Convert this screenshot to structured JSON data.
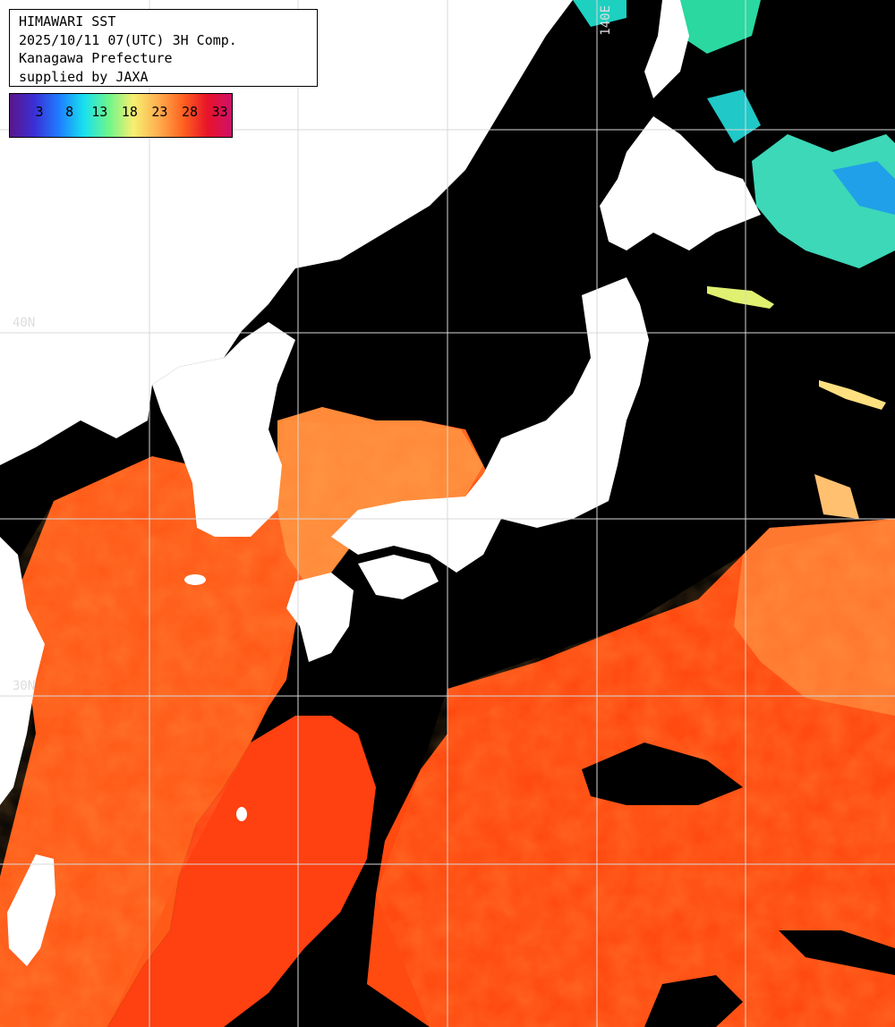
{
  "title": {
    "line1": "HIMAWARI SST",
    "line2": "2025/10/11 07(UTC) 3H Comp.",
    "line3": "Kanagawa Prefecture",
    "line4": "supplied by JAXA"
  },
  "legend": {
    "ticks": [
      "3",
      "8",
      "13",
      "18",
      "23",
      "28",
      "33"
    ],
    "colors": [
      "#5a168a",
      "#3b2fd6",
      "#1f7dff",
      "#18e0f0",
      "#6cf58c",
      "#f6f070",
      "#ffb050",
      "#ff6420",
      "#e81428",
      "#d0106a"
    ]
  },
  "grid_labels": {
    "lat40": "40N",
    "lat30": "30N",
    "lon140": "140E"
  },
  "colors": {
    "land": "#ffffff",
    "no_data": "#000000",
    "grid": "#d8d8d8",
    "sea_warm": "#ff4a10",
    "sea_mid": "#ff7a2a",
    "sea_cool": "#ffa050"
  }
}
